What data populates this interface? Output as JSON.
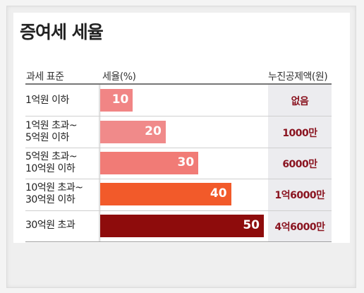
{
  "title": "증여세 세율",
  "headers": {
    "category": "과세 표준",
    "rate": "세율(%)",
    "deduction": "누진공제액(원)"
  },
  "chart_data": {
    "type": "bar",
    "orientation": "horizontal",
    "categories": [
      [
        "1억원 이하"
      ],
      [
        "1억원 초과~",
        "5억원 이하"
      ],
      [
        "5억원 초과~",
        "10억원 이하"
      ],
      [
        "10억원 초과~",
        "30억원 이하"
      ],
      [
        "30억원 초과"
      ]
    ],
    "values": [
      10,
      20,
      30,
      40,
      50
    ],
    "value_labels": [
      "10",
      "20",
      "30",
      "40",
      "50"
    ],
    "deductions": [
      "없음",
      "1000만",
      "6000만",
      "1억6000만",
      "4억6000만"
    ],
    "bar_colors": [
      "#f18585",
      "#f08a8a",
      "#f17b76",
      "#f25a2a",
      "#8e0c0c"
    ],
    "deduction_color": "#8a1420",
    "xlim": [
      0,
      50
    ]
  }
}
